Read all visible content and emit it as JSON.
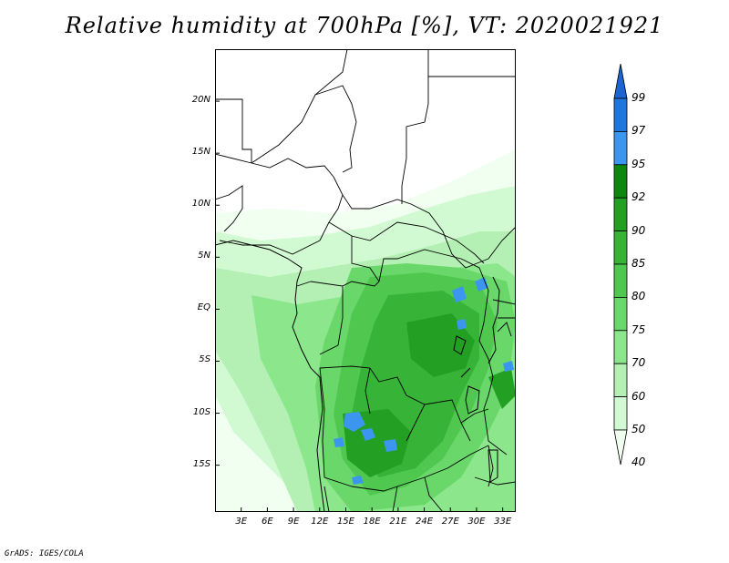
{
  "title": "Relative humidity at 700hPa [%], VT: 2020021921",
  "credit": "GrADS: IGES/COLA",
  "map": {
    "lat_labels": [
      "20N",
      "15N",
      "10N",
      "5N",
      "EQ",
      "5S",
      "10S",
      "15S"
    ],
    "lat_values": [
      20,
      15,
      10,
      5,
      0,
      -5,
      -10,
      -15
    ],
    "lon_labels": [
      "3E",
      "6E",
      "9E",
      "12E",
      "15E",
      "18E",
      "21E",
      "24E",
      "27E",
      "30E",
      "33E"
    ],
    "lon_values": [
      3,
      6,
      9,
      12,
      15,
      18,
      21,
      24,
      27,
      30,
      33
    ],
    "lon_range": [
      0,
      34.5
    ],
    "lat_range": [
      -19.5,
      25
    ]
  },
  "colorbar": {
    "levels": [
      "99",
      "97",
      "95",
      "92",
      "90",
      "85",
      "80",
      "75",
      "70",
      "60",
      "50",
      "40"
    ],
    "colors": [
      "#1c64d2",
      "#1e78dc",
      "#3c96f0",
      "#0f870f",
      "#23a023",
      "#37b437",
      "#50c850",
      "#69d769",
      "#8ce68c",
      "#b4f0b4",
      "#d2fad2",
      "#f0fff0"
    ]
  },
  "colors": {
    "c40": "#f0fff0",
    "c50": "#d2fad2",
    "c60": "#b4f0b4",
    "c70": "#8ce68c",
    "c75": "#69d769",
    "c80": "#50c850",
    "c85": "#37b437",
    "c90": "#23a023",
    "c95": "#3c96f0",
    "c97": "#1e78dc"
  }
}
